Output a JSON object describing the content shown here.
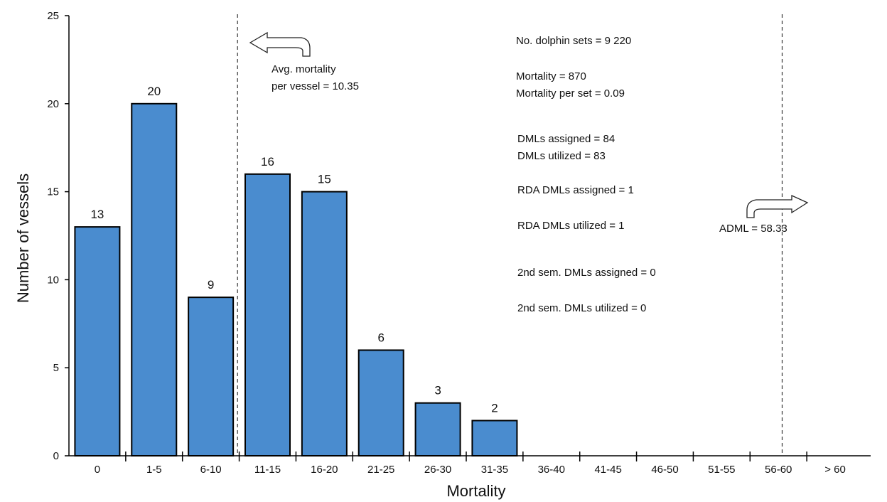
{
  "chart_data": {
    "type": "bar",
    "categories": [
      "0",
      "1-5",
      "6-10",
      "11-15",
      "16-20",
      "21-25",
      "26-30",
      "31-35",
      "36-40",
      "41-45",
      "46-50",
      "51-55",
      "56-60",
      "> 60"
    ],
    "values": [
      13,
      20,
      9,
      16,
      15,
      6,
      3,
      2,
      0,
      0,
      0,
      0,
      0,
      0
    ],
    "bar_labels": [
      "13",
      "20",
      "9",
      "16",
      "15",
      "6",
      "3",
      "2",
      "",
      "",
      "",
      "",
      "",
      ""
    ],
    "xlabel": "Mortality",
    "ylabel": "Number of vessels",
    "ylim": [
      0,
      25
    ],
    "yticks": [
      "0",
      "5",
      "10",
      "15",
      "20",
      "25"
    ],
    "ytick_values": [
      0,
      5,
      10,
      15,
      20,
      25
    ],
    "grid": false,
    "bar_color": "#4a8ccf",
    "reference_lines": [
      {
        "name": "avg",
        "x": 10.35,
        "label_lines": [
          "Avg. mortality",
          "per vessel = 10.35"
        ],
        "arrow": "left"
      },
      {
        "name": "adml",
        "x": 58.33,
        "label_lines": [
          "ADML = 58.33"
        ],
        "arrow": "right"
      }
    ],
    "annotations": [
      "No. dolphin sets = 9 220",
      "Mortality = 870",
      "Mortality per set = 0.09",
      "DMLs assigned = 84",
      "DMLs utilized =  83",
      "RDA DMLs assigned = 1",
      "RDA DMLs utilized = 1",
      "2nd sem. DMLs assigned = 0",
      "2nd sem. DMLs utilized =  0"
    ]
  }
}
